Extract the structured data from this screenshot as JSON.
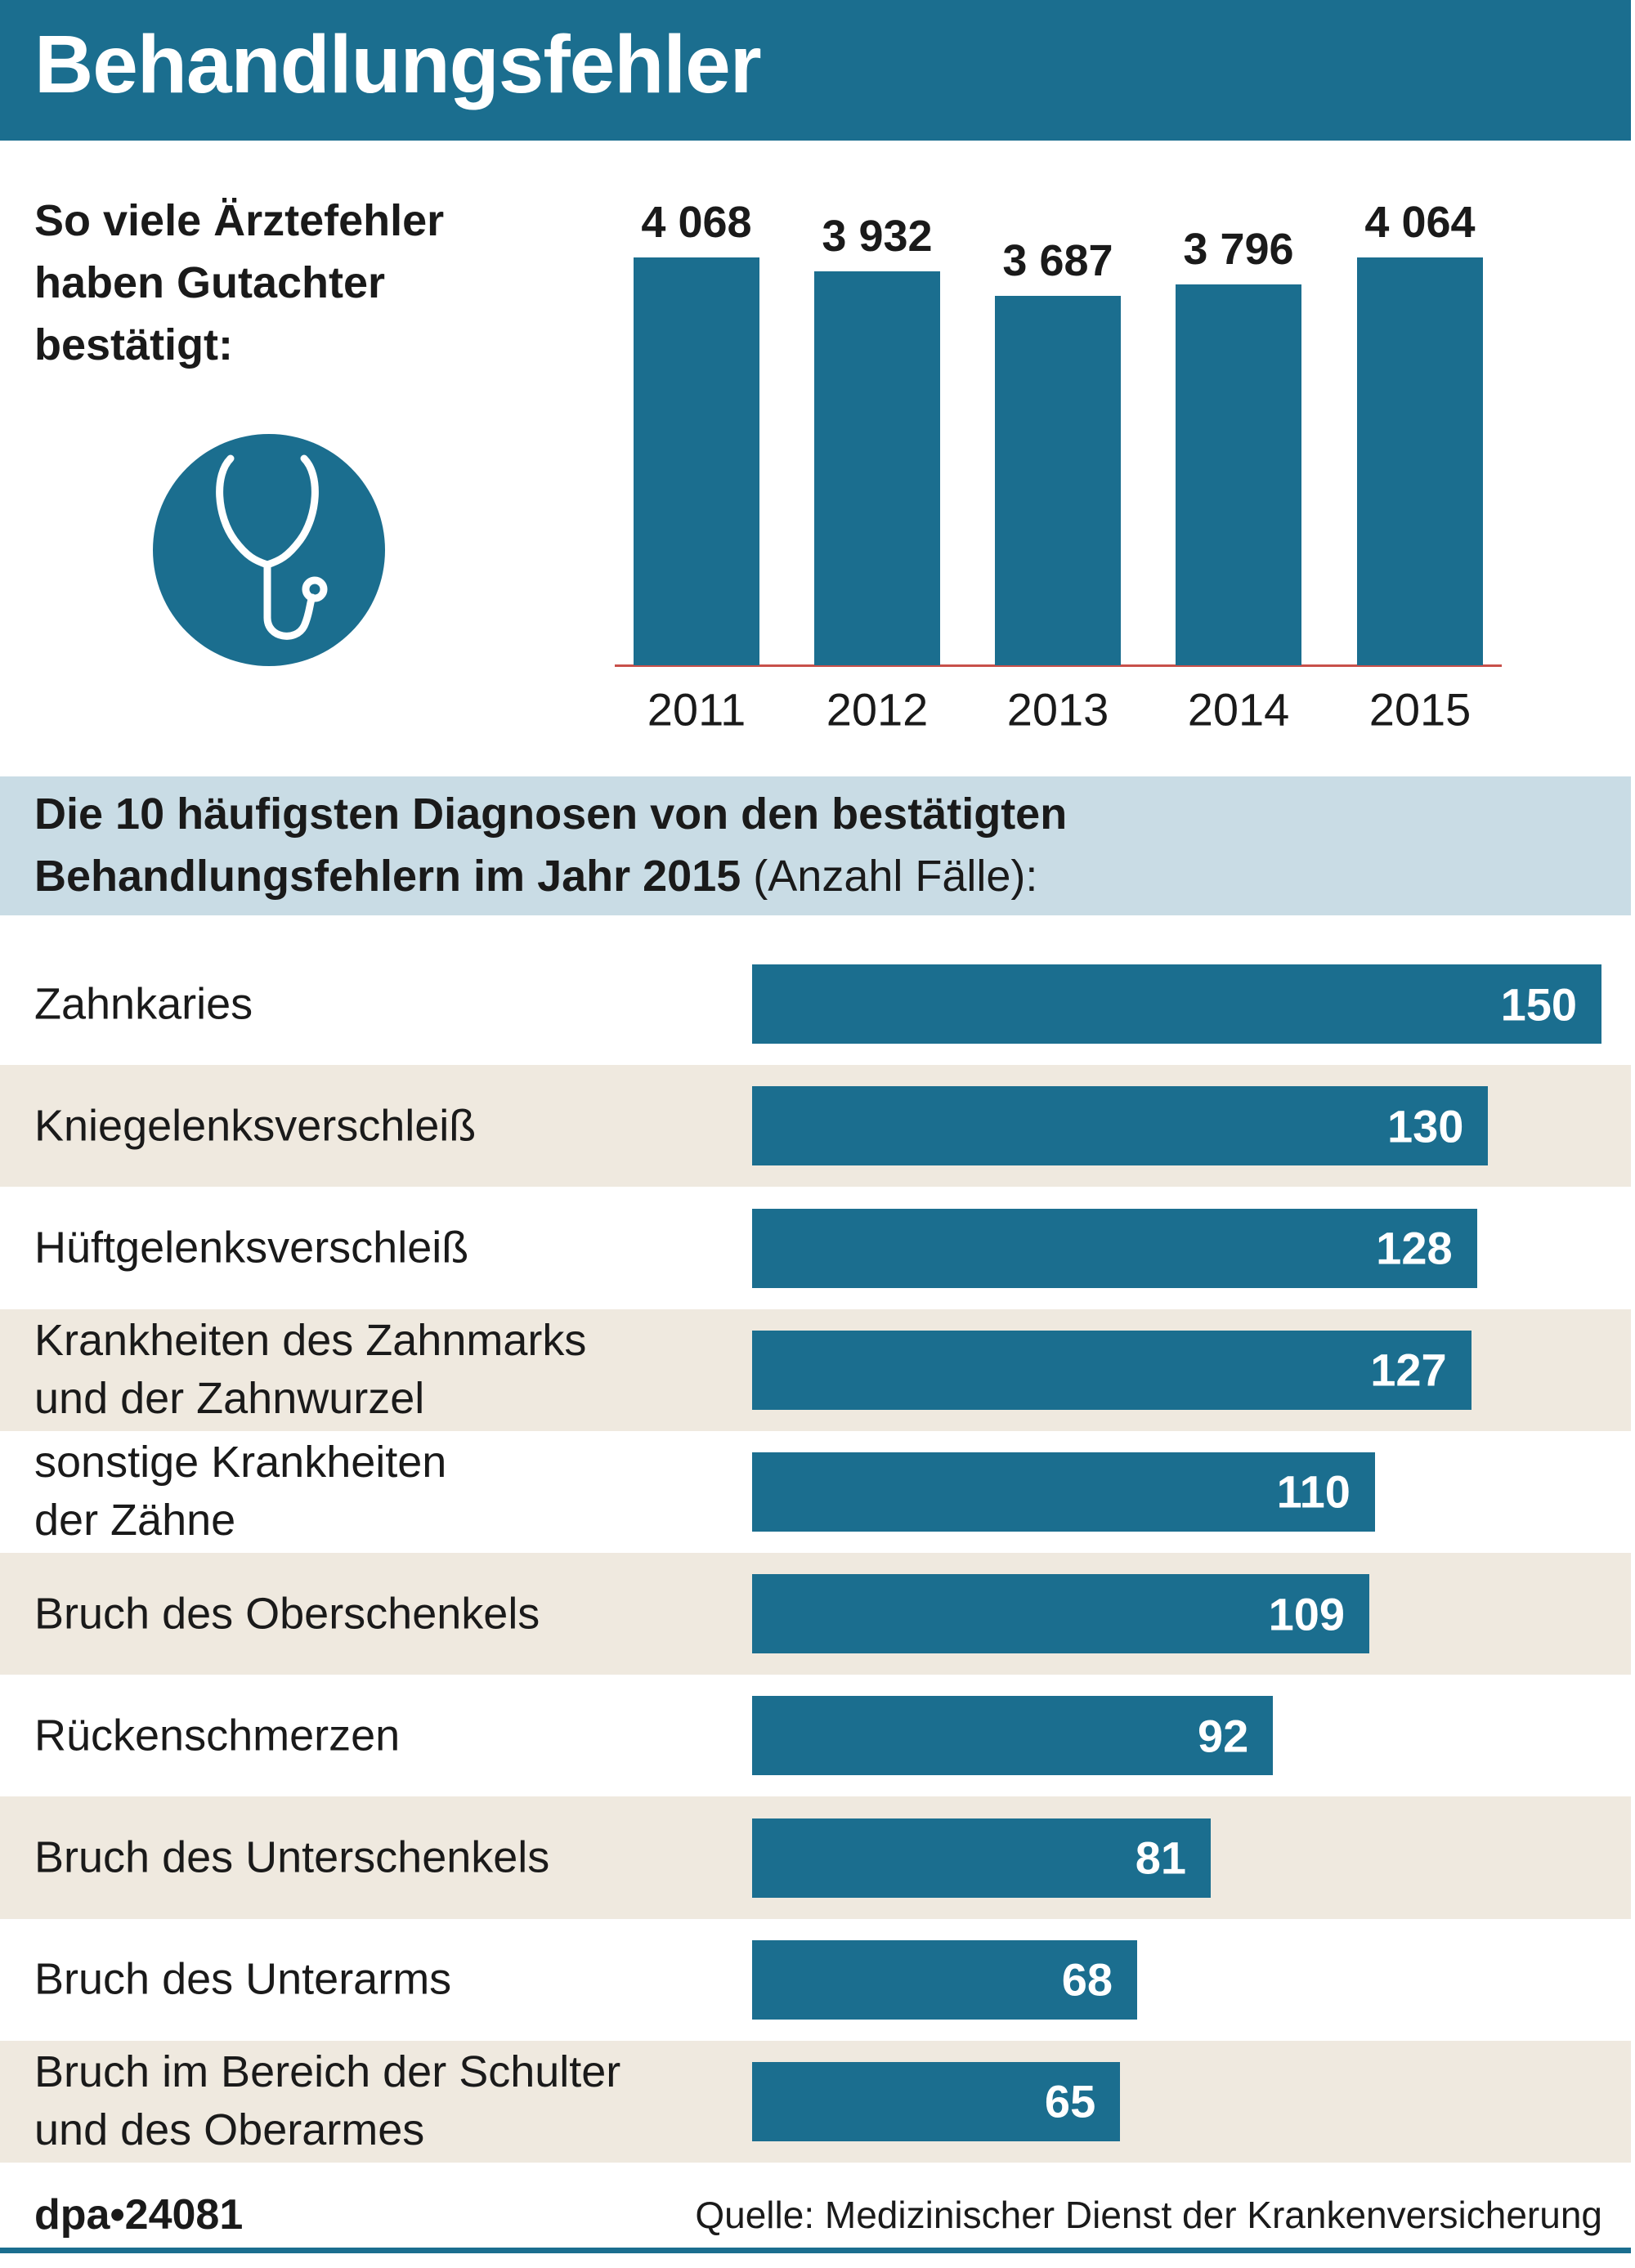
{
  "header": {
    "title": "Behandlungsfehler"
  },
  "chart_data": [
    {
      "type": "bar",
      "title": "So viele Ärztefehler\nhaben Gutachter\nbestätigt:",
      "categories": [
        "2011",
        "2012",
        "2013",
        "2014",
        "2015"
      ],
      "values": [
        4068,
        3932,
        3687,
        3796,
        4064
      ],
      "value_labels": [
        "4 068",
        "3 932",
        "3 687",
        "3 796",
        "4 064"
      ],
      "color": "#1b6e8f",
      "baseline_color": "#c8504a"
    },
    {
      "type": "bar",
      "horizontal": true,
      "title": "Die 10 häufigsten Diagnosen von den bestätigten\nBehandlungsfehlern im Jahr 2015",
      "subtitle": "(Anzahl Fälle):",
      "categories": [
        "Zahnkaries",
        "Kniegelenksverschleiß",
        "Hüftgelenksverschleiß",
        "Krankheiten des Zahnmarks\nund der Zahnwurzel",
        "sonstige Krankheiten\nder Zähne",
        "Bruch des Oberschenkels",
        "Rückenschmerzen",
        "Bruch des Unterschenkels",
        "Bruch des Unterarms",
        "Bruch im Bereich der Schulter\nund des Oberarmes"
      ],
      "values": [
        150,
        130,
        128,
        127,
        110,
        109,
        92,
        81,
        68,
        65
      ],
      "color": "#1b6e8f"
    }
  ],
  "footer": {
    "credit": "dpa•24081",
    "source": "Quelle: Medizinischer Dienst der Krankenversicherung"
  }
}
